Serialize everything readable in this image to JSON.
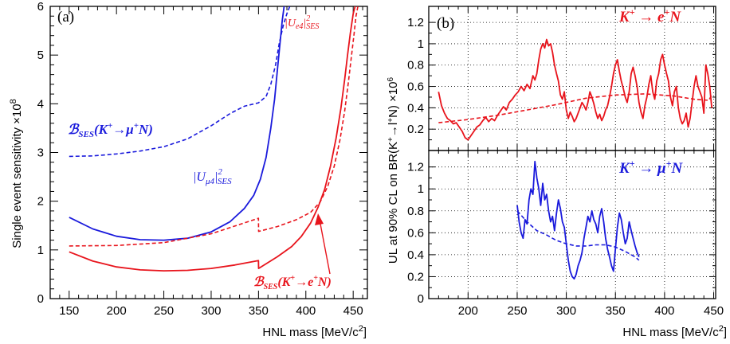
{
  "charts": {
    "a": {
      "panel_label": "(a)",
      "ylabel": "Single event sensitivity ×10",
      "ylabel_exp": "8",
      "xlabel": "HNL mass [MeV/c",
      "xlabel_sup": "2",
      "xlabel_end": "]",
      "xticks": [
        "150",
        "200",
        "250",
        "300",
        "350",
        "400",
        "450"
      ],
      "yticks": [
        "0",
        "1",
        "2",
        "3",
        "4",
        "5",
        "6"
      ],
      "annotations": {
        "b_mu": "ℬ",
        "b_mu_sub": "SES",
        "b_mu_rest": "(K",
        "b_mu_sup": "+",
        "b_mu_arrow": "→μ",
        "b_mu_sup2": "+",
        "b_mu_end": "N)",
        "u_mu": "|U",
        "u_mu_sub": "μ4",
        "u_mu_end": "|",
        "u_mu_sup": "2",
        "u_mu_sub2": "SES",
        "u_e": "|U",
        "u_e_sub": "e4",
        "u_e_end": "|",
        "u_e_sup": "2",
        "u_e_sub2": "SES",
        "b_e": "ℬ",
        "b_e_sub": "SES",
        "b_e_rest": "(K",
        "b_e_sup": "+",
        "b_e_arrow": "→e",
        "b_e_sup2": "+",
        "b_e_end": "N)"
      }
    },
    "b": {
      "panel_label": "(b)",
      "ylabel": "UL at 90% CL on BR(K",
      "ylabel_sup": "+",
      "ylabel_mid": "→l",
      "ylabel_sup2": "+",
      "ylabel_end": "N) ×10",
      "ylabel_exp": "6",
      "xlabel": "HNL mass [MeV/c",
      "xlabel_sup": "2",
      "xlabel_end": "]",
      "xticks": [
        "200",
        "250",
        "300",
        "350",
        "400",
        "450"
      ],
      "top_yticks": [
        "0.2",
        "0.4",
        "0.6",
        "0.8",
        "1",
        "1.2"
      ],
      "bot_yticks": [
        "0",
        "0.2",
        "0.4",
        "0.6",
        "0.8",
        "1",
        "1.2"
      ],
      "top_title": "K",
      "top_title_sup": "+",
      "top_title_rest": " → e",
      "top_title_sup2": "+",
      "top_title_end": "N",
      "bot_title": "K",
      "bot_title_sup": "+",
      "bot_title_rest": " → μ",
      "bot_title_sup2": "+",
      "bot_title_end": "N"
    }
  },
  "colors": {
    "electron": "#e8141c",
    "muon": "#1a1adc",
    "axis": "#000000"
  },
  "chart_data": [
    {
      "type": "line",
      "panel": "a",
      "xlim": [
        130,
        465
      ],
      "ylim": [
        0,
        6
      ],
      "grid": false,
      "series": [
        {
          "name": "ℬSES(K+→μ+N)",
          "color": "muon",
          "style": "dashed",
          "x": [
            150,
            175,
            200,
            225,
            250,
            275,
            300,
            320,
            335,
            350,
            358,
            363,
            368,
            372,
            376,
            380,
            383
          ],
          "y": [
            2.92,
            2.93,
            2.97,
            3.03,
            3.12,
            3.28,
            3.55,
            3.8,
            3.95,
            4.02,
            4.15,
            4.4,
            4.8,
            5.25,
            5.6,
            5.85,
            6.0
          ]
        },
        {
          "name": "|Uμ4|²SES",
          "color": "muon",
          "style": "solid",
          "x": [
            150,
            175,
            200,
            225,
            250,
            275,
            300,
            320,
            335,
            345,
            352,
            358,
            363,
            367,
            370,
            373,
            375,
            377
          ],
          "y": [
            1.67,
            1.43,
            1.28,
            1.21,
            1.2,
            1.24,
            1.37,
            1.58,
            1.85,
            2.12,
            2.45,
            2.9,
            3.5,
            4.1,
            4.7,
            5.3,
            5.7,
            6.0
          ]
        },
        {
          "name": "|Ue4|²SES",
          "color": "electron",
          "style": "dashed",
          "x": [
            150,
            200,
            250,
            300,
            349.9,
            350.1,
            370,
            390,
            405,
            415,
            423,
            430,
            436,
            441,
            445,
            448,
            451,
            453,
            455
          ],
          "y": [
            1.08,
            1.09,
            1.15,
            1.33,
            1.65,
            1.38,
            1.48,
            1.62,
            1.77,
            1.98,
            2.3,
            2.72,
            3.25,
            3.85,
            4.45,
            4.95,
            5.45,
            5.8,
            6.0
          ]
        },
        {
          "name": "ℬSES(K+→e+N)",
          "color": "electron",
          "style": "solid",
          "x": [
            150,
            175,
            200,
            225,
            250,
            275,
            300,
            325,
            349.9,
            350.1,
            370,
            385,
            395,
            405,
            413,
            420,
            426,
            432,
            437,
            441,
            444,
            447,
            450,
            452
          ],
          "y": [
            0.96,
            0.77,
            0.65,
            0.59,
            0.57,
            0.58,
            0.62,
            0.69,
            0.78,
            0.62,
            0.86,
            1.07,
            1.27,
            1.55,
            1.88,
            2.25,
            2.72,
            3.3,
            3.9,
            4.5,
            5.0,
            5.45,
            5.85,
            6.0
          ]
        }
      ]
    },
    {
      "type": "line",
      "panel": "b-top",
      "xlim": [
        160,
        452
      ],
      "ylim": [
        0,
        1.35
      ],
      "grid": true,
      "series": [
        {
          "name": "K+ → e+N observed",
          "color": "electron",
          "style": "solid",
          "x": [
            170,
            173,
            176,
            179,
            182,
            185,
            188,
            191,
            194,
            197,
            200,
            203,
            206,
            209,
            212,
            215,
            218,
            221,
            224,
            227,
            230,
            233,
            236,
            239,
            242,
            245,
            248,
            251,
            254,
            257,
            260,
            263,
            266,
            268,
            270,
            272,
            274,
            276,
            278,
            280,
            282,
            284,
            286,
            288,
            290,
            292,
            294,
            296,
            298,
            300,
            302,
            304,
            306,
            308,
            310,
            312,
            314,
            316,
            318,
            320,
            322,
            324,
            326,
            328,
            330,
            332,
            334,
            336,
            338,
            340,
            342,
            344,
            346,
            348,
            350,
            352,
            354,
            356,
            358,
            360,
            362,
            364,
            366,
            368,
            370,
            372,
            374,
            376,
            378,
            380,
            382,
            384,
            386,
            388,
            390,
            392,
            394,
            396,
            398,
            400,
            402,
            404,
            406,
            408,
            410,
            412,
            414,
            416,
            418,
            420,
            422,
            424,
            426,
            428,
            430,
            432,
            434,
            436,
            438,
            440,
            442,
            444,
            446,
            448
          ],
          "y": [
            0.55,
            0.42,
            0.35,
            0.3,
            0.28,
            0.25,
            0.26,
            0.22,
            0.18,
            0.12,
            0.1,
            0.14,
            0.18,
            0.22,
            0.24,
            0.28,
            0.31,
            0.27,
            0.3,
            0.28,
            0.33,
            0.37,
            0.41,
            0.38,
            0.45,
            0.48,
            0.52,
            0.55,
            0.6,
            0.56,
            0.62,
            0.58,
            0.7,
            0.66,
            0.72,
            0.85,
            0.95,
            1.0,
            0.96,
            1.04,
            0.98,
            1.0,
            0.92,
            0.8,
            0.72,
            0.65,
            0.52,
            0.48,
            0.55,
            0.38,
            0.3,
            0.36,
            0.32,
            0.27,
            0.3,
            0.35,
            0.4,
            0.45,
            0.42,
            0.38,
            0.45,
            0.55,
            0.5,
            0.44,
            0.36,
            0.3,
            0.34,
            0.28,
            0.32,
            0.38,
            0.42,
            0.5,
            0.6,
            0.72,
            0.8,
            0.85,
            0.74,
            0.65,
            0.58,
            0.5,
            0.45,
            0.55,
            0.72,
            0.78,
            0.7,
            0.6,
            0.45,
            0.36,
            0.3,
            0.42,
            0.5,
            0.62,
            0.7,
            0.55,
            0.48,
            0.65,
            0.72,
            0.85,
            0.9,
            0.8,
            0.72,
            0.65,
            0.5,
            0.42,
            0.55,
            0.6,
            0.4,
            0.3,
            0.25,
            0.28,
            0.35,
            0.22,
            0.3,
            0.45,
            0.6,
            0.7,
            0.6,
            0.55,
            0.5,
            0.35,
            0.8,
            0.72,
            0.6,
            0.4
          ]
        },
        {
          "name": "K+ → e+N expected",
          "color": "electron",
          "style": "dashed",
          "x": [
            170,
            200,
            230,
            260,
            290,
            320,
            350,
            380,
            410,
            430,
            445,
            448
          ],
          "y": [
            0.26,
            0.29,
            0.33,
            0.38,
            0.43,
            0.49,
            0.52,
            0.53,
            0.51,
            0.48,
            0.47,
            0.52
          ]
        }
      ]
    },
    {
      "type": "line",
      "panel": "b-bottom",
      "xlim": [
        160,
        452
      ],
      "ylim": [
        0,
        1.35
      ],
      "grid": true,
      "series": [
        {
          "name": "K+ → μ+N observed",
          "color": "muon",
          "style": "solid",
          "x": [
            250,
            252,
            254,
            256,
            258,
            260,
            262,
            264,
            266,
            268,
            270,
            272,
            274,
            276,
            278,
            280,
            282,
            284,
            286,
            288,
            290,
            292,
            294,
            296,
            298,
            300,
            302,
            304,
            306,
            308,
            310,
            312,
            314,
            316,
            318,
            320,
            322,
            324,
            326,
            328,
            330,
            332,
            334,
            336,
            338,
            340,
            342,
            344,
            346,
            348,
            350,
            352,
            354,
            356,
            358,
            360,
            362,
            364,
            366,
            368,
            370,
            372,
            374
          ],
          "y": [
            0.85,
            0.7,
            0.6,
            0.55,
            0.72,
            0.68,
            0.9,
            1.0,
            0.95,
            1.25,
            1.1,
            1.0,
            0.85,
            1.05,
            0.9,
            0.95,
            0.8,
            0.7,
            0.75,
            0.62,
            0.78,
            0.9,
            0.82,
            0.7,
            0.65,
            0.5,
            0.35,
            0.25,
            0.2,
            0.18,
            0.22,
            0.3,
            0.35,
            0.42,
            0.55,
            0.65,
            0.75,
            0.7,
            0.8,
            0.72,
            0.68,
            0.6,
            0.75,
            0.82,
            0.7,
            0.55,
            0.45,
            0.38,
            0.3,
            0.25,
            0.45,
            0.65,
            0.78,
            0.72,
            0.6,
            0.5,
            0.55,
            0.7,
            0.62,
            0.55,
            0.48,
            0.42,
            0.38
          ]
        },
        {
          "name": "K+ → μ+N expected",
          "color": "muon",
          "style": "dashed",
          "x": [
            250,
            260,
            270,
            280,
            290,
            300,
            310,
            320,
            330,
            340,
            350,
            360,
            370,
            374
          ],
          "y": [
            0.8,
            0.7,
            0.62,
            0.58,
            0.53,
            0.5,
            0.48,
            0.48,
            0.49,
            0.49,
            0.47,
            0.43,
            0.38,
            0.35
          ]
        }
      ]
    }
  ]
}
